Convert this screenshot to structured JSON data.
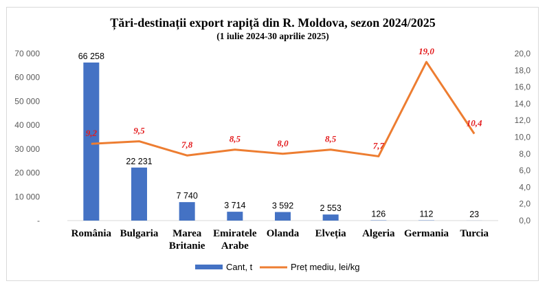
{
  "chart_data": {
    "type": "bar",
    "title": "Țări-destinații export rapiță din R. Moldova, sezon 2024/2025",
    "subtitle": "(1 iulie 2024-30 aprilie 2025)",
    "categories": [
      [
        "România"
      ],
      [
        "Bulgaria"
      ],
      [
        "Marea",
        "Britanie"
      ],
      [
        "Emiratele",
        "Arabe"
      ],
      [
        "Olanda"
      ],
      [
        "Elveția"
      ],
      [
        "Algeria"
      ],
      [
        "Germania"
      ],
      [
        "Turcia"
      ]
    ],
    "series": [
      {
        "name": "Cant, t",
        "type": "bar",
        "axis": "left",
        "values": [
          66258,
          22231,
          7740,
          3714,
          3592,
          2553,
          126,
          112,
          23
        ],
        "labels": [
          "66 258",
          "22 231",
          "7 740",
          "3 714",
          "3 592",
          "2 553",
          "126",
          "112",
          "23"
        ],
        "color": "#4472c4"
      },
      {
        "name": "Preț mediu, lei/kg",
        "type": "line",
        "axis": "right",
        "values": [
          9.2,
          9.5,
          7.8,
          8.5,
          8.0,
          8.5,
          7.7,
          19.0,
          10.4
        ],
        "labels": [
          "9,2",
          "9,5",
          "7,8",
          "8,5",
          "8,0",
          "8,5",
          "7,7",
          "19,0",
          "10,4"
        ],
        "color": "#ed7d31",
        "label_color": "#e31a1c"
      }
    ],
    "y_left": {
      "ylim": [
        0,
        70000
      ],
      "ticks": [
        0,
        10000,
        20000,
        30000,
        40000,
        50000,
        60000,
        70000
      ],
      "tick_labels": [
        "-",
        "10 000",
        "20 000",
        "30 000",
        "40 000",
        "50 000",
        "60 000",
        "70 000"
      ]
    },
    "y_right": {
      "ylim": [
        0,
        20
      ],
      "ticks": [
        0,
        2,
        4,
        6,
        8,
        10,
        12,
        14,
        16,
        18,
        20
      ],
      "tick_labels": [
        "0,0",
        "2,0",
        "4,0",
        "6,0",
        "8,0",
        "10,0",
        "12,0",
        "14,0",
        "16,0",
        "18,0",
        "20,0"
      ]
    },
    "grid": false,
    "legend": "bottom"
  }
}
